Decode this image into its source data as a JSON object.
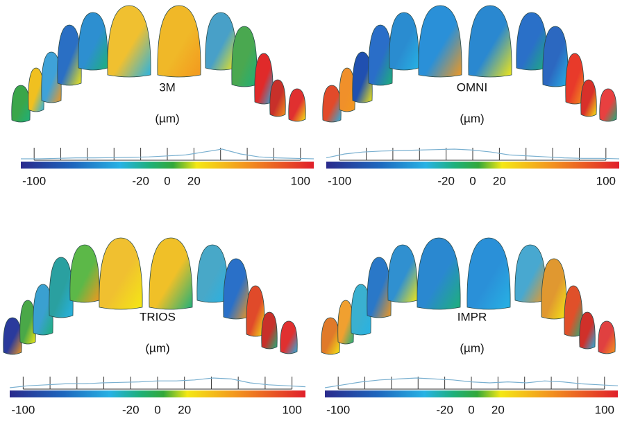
{
  "panels": [
    {
      "label": "3M",
      "unit": "(µm)",
      "scale_labels": [
        -100,
        -20,
        0,
        20,
        100
      ]
    },
    {
      "label": "OMNI",
      "unit": "(µm)",
      "scale_labels": [
        -100,
        -20,
        0,
        20,
        100
      ]
    },
    {
      "label": "TRIOS",
      "unit": "(µm)",
      "scale_labels": [
        -100,
        -20,
        0,
        20,
        100
      ]
    },
    {
      "label": "IMPR",
      "unit": "(µm)",
      "scale_labels": [
        -100,
        -20,
        0,
        20,
        100
      ]
    }
  ]
}
